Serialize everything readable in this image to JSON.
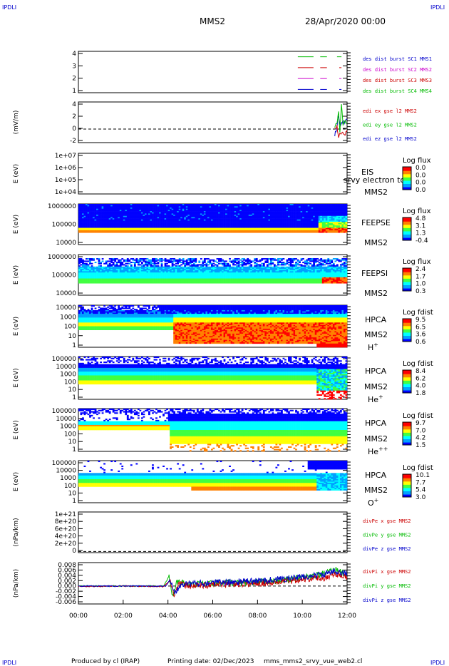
{
  "header": {
    "corner_left_top": "IPDLI",
    "corner_right_top": "IPDLI",
    "spacecraft": "MMS2",
    "date": "28/Apr/2020 00:00"
  },
  "footer": {
    "produced_by": "Produced by cl (IRAP)",
    "printing_date": "Printing date: 02/Dec/2023",
    "script_name": "mms_mms2_srvy_vue_web2.cl",
    "corner_left_bottom": "IPDLI",
    "corner_right_bottom": "IPDLI"
  },
  "colors": {
    "blue": "#0000cc",
    "green": "#00bb00",
    "magenta": "#cc00cc",
    "red": "#cc0000",
    "colorbar": [
      "#0000ff",
      "#00a0ff",
      "#00ffff",
      "#40ff40",
      "#ffff00",
      "#ff8000",
      "#ff0000"
    ]
  },
  "chart_data": {
    "x_axis": {
      "ticks": [
        "00:00",
        "02:00",
        "04:00",
        "06:00",
        "08:00",
        "10:00",
        "12:00"
      ],
      "range_hours": [
        0,
        12
      ]
    },
    "panels": [
      {
        "id": "burst",
        "type": "line",
        "y_ticks": [
          "4",
          "3",
          "2",
          "1"
        ],
        "y_range": [
          0.7,
          4.5
        ],
        "legend": [
          {
            "text": "des dist burst SC1 MMS1",
            "color": "#0000cc"
          },
          {
            "text": "des dist burst SC2 MMS2",
            "color": "#cc00cc"
          },
          {
            "text": "des dist burst SC3 MMS3",
            "color": "#cc0000"
          },
          {
            "text": "des dist burst SC4 MMS4",
            "color": "#00bb00"
          }
        ],
        "series": [
          {
            "color": "#00bb00",
            "y": 4,
            "segments": [
              [
                9.8,
                10.5
              ],
              [
                10.8,
                11.1
              ],
              [
                11.55,
                11.75
              ]
            ]
          },
          {
            "color": "#cc0000",
            "y": 3,
            "segments": [
              [
                9.8,
                10.5
              ],
              [
                10.8,
                11.1
              ],
              [
                11.65,
                11.75
              ]
            ]
          },
          {
            "color": "#cc00cc",
            "y": 2,
            "segments": [
              [
                9.8,
                10.5
              ],
              [
                10.8,
                11.1
              ],
              [
                11.65,
                11.75
              ]
            ]
          },
          {
            "color": "#0000cc",
            "y": 1,
            "segments": [
              [
                9.8,
                10.5
              ],
              [
                10.8,
                11.1
              ],
              [
                11.65,
                11.75
              ]
            ]
          }
        ]
      },
      {
        "id": "edi",
        "type": "line",
        "ylabel": "(mV/m)",
        "y_ticks": [
          "4",
          "2",
          "0",
          "-2"
        ],
        "y_range": [
          -2.5,
          5
        ],
        "zero_line": true,
        "legend": [
          {
            "text": "edi ex gse l2 MMS2",
            "color": "#cc0000"
          },
          {
            "text": "edi ey gse l2 MMS2",
            "color": "#00bb00"
          },
          {
            "text": "edi ez gse l2 MMS2",
            "color": "#0000cc"
          }
        ],
        "series": [
          {
            "color": "#0000cc",
            "points": [
              [
                11.45,
                -1
              ],
              [
                11.55,
                0.2
              ],
              [
                11.6,
                2.5
              ],
              [
                11.7,
                0.5
              ],
              [
                11.8,
                1.5
              ],
              [
                11.9,
                1.2
              ],
              [
                12,
                1.8
              ]
            ]
          },
          {
            "color": "#00bb00",
            "points": [
              [
                11.45,
                0.5
              ],
              [
                11.55,
                1.0
              ],
              [
                11.62,
                3.0
              ],
              [
                11.68,
                -0.5
              ],
              [
                11.75,
                4.8
              ],
              [
                11.82,
                0.8
              ],
              [
                11.9,
                1.4
              ],
              [
                12,
                1.2
              ]
            ]
          },
          {
            "color": "#cc0000",
            "points": [
              [
                11.45,
                0
              ],
              [
                11.55,
                0.5
              ],
              [
                11.62,
                -1.5
              ],
              [
                11.7,
                -0.8
              ],
              [
                11.8,
                -0.5
              ],
              [
                11.9,
                -1.2
              ],
              [
                12,
                -0.2
              ]
            ]
          }
        ]
      },
      {
        "id": "eis",
        "type": "heatmap",
        "ylabel": "E (eV)",
        "y_ticks": [
          "1e+07",
          "1e+06",
          "1e+05",
          "1e+04"
        ],
        "instrument": "EIS",
        "spacecraft": "MMS2",
        "overlay_text": "srvy electron to",
        "colorbar_title": "Log flux",
        "colorbar_ticks": [
          "0.0",
          "0.0",
          "0.0",
          "0.0"
        ]
      },
      {
        "id": "feepse",
        "type": "heatmap",
        "ylabel": "E (eV)",
        "y_ticks": [
          "1000000",
          "100000",
          "10000"
        ],
        "instrument": "FEEPSE",
        "spacecraft": "MMS2",
        "colorbar_title": "Log flux",
        "colorbar_ticks": [
          "4.8",
          "3.1",
          "1.3",
          "-0.4"
        ]
      },
      {
        "id": "feepsi",
        "type": "heatmap",
        "ylabel": "E (eV)",
        "y_ticks": [
          "1000000",
          "100000",
          "10000"
        ],
        "instrument": "FEEPSI",
        "spacecraft": "MMS2",
        "colorbar_title": "Log flux",
        "colorbar_ticks": [
          "2.4",
          "1.7",
          "1.0",
          "0.3"
        ]
      },
      {
        "id": "hpca_h",
        "type": "heatmap",
        "ylabel": "E (eV)",
        "y_ticks": [
          "10000",
          "1000",
          "100",
          "10",
          "1"
        ],
        "instrument": "HPCA",
        "spacecraft": "MMS2",
        "species": "H",
        "species_sup": "+",
        "colorbar_title": "Log fdist",
        "colorbar_ticks": [
          "9.5",
          "6.5",
          "3.6",
          "0.6"
        ]
      },
      {
        "id": "hpca_he",
        "type": "heatmap",
        "ylabel": "E (eV)",
        "y_ticks": [
          "100000",
          "10000",
          "1000",
          "100",
          "10",
          "1"
        ],
        "instrument": "HPCA",
        "spacecraft": "MMS2",
        "species": "He",
        "species_sup": "+",
        "colorbar_title": "Log fdist",
        "colorbar_ticks": [
          "8.4",
          "6.2",
          "4.0",
          "1.8"
        ]
      },
      {
        "id": "hpca_hepp",
        "type": "heatmap",
        "ylabel": "E (eV)",
        "y_ticks": [
          "100000",
          "10000",
          "1000",
          "100",
          "10",
          "1"
        ],
        "instrument": "HPCA",
        "spacecraft": "MMS2",
        "species": "He",
        "species_sup": "++",
        "colorbar_title": "Log fdist",
        "colorbar_ticks": [
          "9.7",
          "7.0",
          "4.2",
          "1.5"
        ]
      },
      {
        "id": "hpca_o",
        "type": "heatmap",
        "ylabel": "E (eV)",
        "y_ticks": [
          "100000",
          "10000",
          "1000",
          "100",
          "10",
          "1"
        ],
        "instrument": "HPCA",
        "spacecraft": "MMS2",
        "species": "O",
        "species_sup": "+",
        "colorbar_title": "Log fdist",
        "colorbar_ticks": [
          "10.1",
          "7.7",
          "5.4",
          "3.0"
        ]
      },
      {
        "id": "divpe",
        "type": "line",
        "ylabel": "(nPa/km)",
        "y_ticks": [
          "1e+21",
          "8e+20",
          "6e+20",
          "4e+20",
          "2e+20",
          "0"
        ],
        "y_range": [
          -3e+19,
          1.06e+21
        ],
        "zero_line": true,
        "legend": [
          {
            "text": "divPe x gse MMS2",
            "color": "#cc0000"
          },
          {
            "text": "divPe y gse MMS2",
            "color": "#00bb00"
          },
          {
            "text": "divPe z gse MMS2",
            "color": "#0000cc"
          }
        ],
        "series": []
      },
      {
        "id": "divpi",
        "type": "line",
        "ylabel": "(nPa/km)",
        "y_ticks": [
          "0.008",
          "0.006",
          "0.004",
          "0.002",
          "0.000",
          "-0.002",
          "-0.004",
          "-0.006"
        ],
        "y_range": [
          -0.0065,
          0.0085
        ],
        "zero_line": true,
        "legend": [
          {
            "text": "divPi x gse MMS2",
            "color": "#cc0000"
          },
          {
            "text": "divPi y gse MMS2",
            "color": "#00bb00"
          },
          {
            "text": "divPi z gse MMS2",
            "color": "#0000cc"
          }
        ],
        "series": [
          {
            "color": "#00bb00",
            "points": [
              [
                0,
                0.0
              ],
              [
                2,
                0.0
              ],
              [
                3.8,
                0.0
              ],
              [
                4.05,
                0.0035
              ],
              [
                4.2,
                -0.004
              ],
              [
                4.4,
                0.0015
              ],
              [
                5,
                0.0005
              ],
              [
                6,
                0.001
              ],
              [
                7,
                0.0012
              ],
              [
                8,
                0.0015
              ],
              [
                9,
                0.002
              ],
              [
                10,
                0.003
              ],
              [
                11,
                0.0045
              ],
              [
                11.5,
                0.006
              ],
              [
                12,
                0.004
              ]
            ]
          },
          {
            "color": "#cc0000",
            "points": [
              [
                0,
                -0.0002
              ],
              [
                2,
                0.0
              ],
              [
                3.8,
                -0.0002
              ],
              [
                4.1,
                0.002
              ],
              [
                4.25,
                -0.003
              ],
              [
                4.5,
                0.0008
              ],
              [
                5,
                0.0
              ],
              [
                6,
                0.0005
              ],
              [
                7,
                0.0008
              ],
              [
                8,
                0.001
              ],
              [
                9,
                0.0015
              ],
              [
                10,
                0.0025
              ],
              [
                11,
                0.003
              ],
              [
                11.5,
                0.0045
              ],
              [
                12,
                0.0032
              ]
            ]
          },
          {
            "color": "#0000cc",
            "points": [
              [
                0,
                0.0
              ],
              [
                2,
                0.0
              ],
              [
                3.9,
                0.0
              ],
              [
                4.1,
                0.0025
              ],
              [
                4.3,
                -0.0025
              ],
              [
                4.6,
                0.001
              ],
              [
                5,
                0.0008
              ],
              [
                6,
                0.0012
              ],
              [
                7,
                0.0015
              ],
              [
                8,
                0.0018
              ],
              [
                9,
                0.0025
              ],
              [
                10,
                0.0032
              ],
              [
                11,
                0.0042
              ],
              [
                11.5,
                0.0055
              ],
              [
                12,
                0.0045
              ]
            ]
          }
        ]
      }
    ]
  }
}
